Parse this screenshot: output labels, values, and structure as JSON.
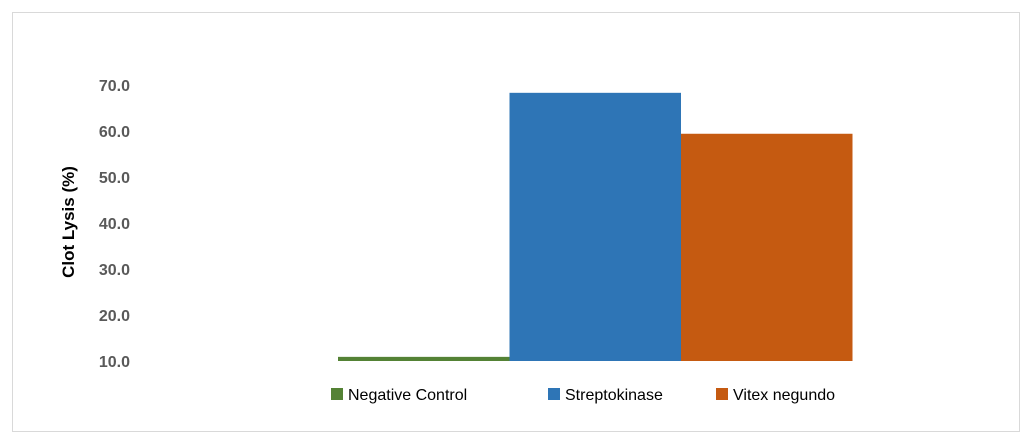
{
  "chart_data": {
    "type": "bar",
    "title": "",
    "xlabel": "",
    "ylabel": "Clot Lysis (%)",
    "ylim": [
      10,
      70
    ],
    "yticks": [
      10.0,
      20.0,
      30.0,
      40.0,
      50.0,
      60.0,
      70.0
    ],
    "ytick_labels": [
      "10.0",
      "20.0",
      "30.0",
      "40.0",
      "50.0",
      "60.0",
      "70.0"
    ],
    "grid": false,
    "legend_position": "bottom",
    "series": [
      {
        "name": "Negative Control",
        "values": [
          10.9
        ],
        "color": "#548235"
      },
      {
        "name": "Streptokinase",
        "values": [
          68.3
        ],
        "color": "#2e75b6"
      },
      {
        "name": "Vitex negundo",
        "values": [
          59.4
        ],
        "color": "#c55a11"
      }
    ]
  }
}
